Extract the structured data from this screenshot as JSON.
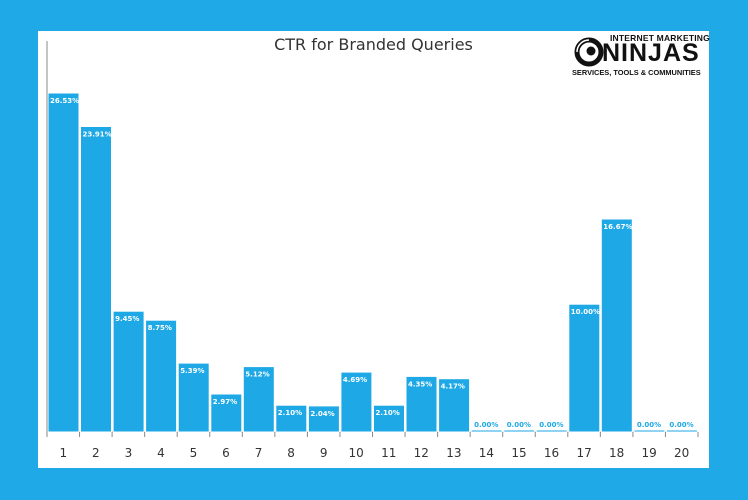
{
  "chart_data": {
    "type": "bar",
    "title": "CTR for Branded Queries",
    "xlabel": "",
    "ylabel": "",
    "categories": [
      "1",
      "2",
      "3",
      "4",
      "5",
      "6",
      "7",
      "8",
      "9",
      "10",
      "11",
      "12",
      "13",
      "14",
      "15",
      "16",
      "17",
      "18",
      "19",
      "20"
    ],
    "values": [
      26.53,
      23.91,
      9.45,
      8.75,
      5.39,
      2.97,
      5.12,
      2.1,
      2.04,
      4.69,
      2.1,
      4.35,
      4.17,
      0.0,
      0.0,
      0.0,
      10.0,
      16.67,
      0.0,
      0.0
    ],
    "data_labels": [
      "26.53%",
      "23.91%",
      "9.45%",
      "8.75%",
      "5.39%",
      "2.97%",
      "5.12%",
      "2.10%",
      "2.04%",
      "4.69%",
      "2.10%",
      "4.35%",
      "4.17%",
      "0.00%",
      "0.00%",
      "0.00%",
      "10.00%",
      "16.67%",
      "0.00%",
      "0.00%"
    ],
    "ylim": [
      0,
      26.53
    ],
    "grid": false,
    "legend": "none",
    "bar_color": "#1ea9e6"
  },
  "page": {
    "background_color": "#1fa9e6",
    "panel_color": "#ffffff"
  },
  "logo": {
    "line1": "INTERNET MARKETING",
    "line2": "NINJAS",
    "line3": "SERVICES, TOOLS & COMMUNITIES"
  }
}
